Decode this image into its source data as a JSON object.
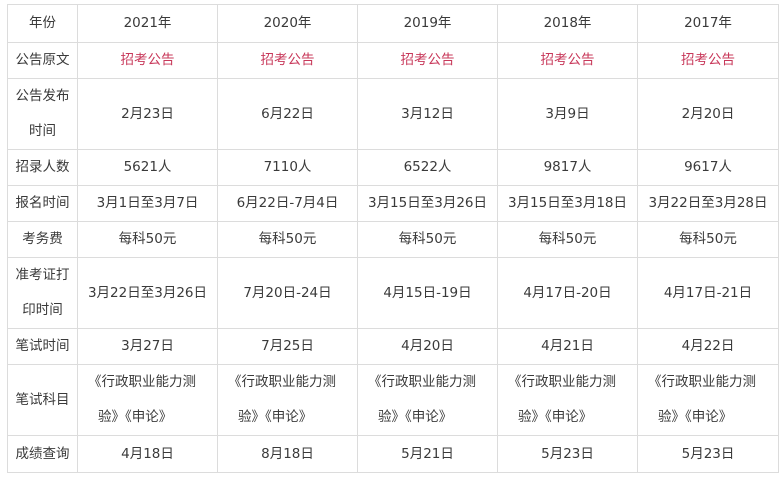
{
  "colors": {
    "link": "#c8385a",
    "text": "#3a3a3a",
    "border": "#dcdcdc"
  },
  "rows": [
    {
      "label": "年份",
      "cells": [
        "2021年",
        "2020年",
        "2019年",
        "2018年",
        "2017年"
      ]
    },
    {
      "label": "公告原文",
      "cells": [
        "招考公告",
        "招考公告",
        "招考公告",
        "招考公告",
        "招考公告"
      ],
      "link": true
    },
    {
      "label_lines": [
        "公告发布",
        "时间"
      ],
      "cells": [
        "2月23日",
        "6月22日",
        "3月12日",
        "3月9日",
        "2月20日"
      ]
    },
    {
      "label": "招录人数",
      "cells": [
        "5621人",
        "7110人",
        "6522人",
        "9817人",
        "9617人"
      ]
    },
    {
      "label": "报名时间",
      "cells": [
        "3月1日至3月7日",
        "6月22日-7月4日",
        "3月15日至3月26日",
        "3月15日至3月18日",
        "3月22日至3月28日"
      ]
    },
    {
      "label": "考务费",
      "cells": [
        "每科50元",
        "每科50元",
        "每科50元",
        "每科50元",
        "每科50元"
      ]
    },
    {
      "label_lines": [
        "准考证打",
        "印时间"
      ],
      "cells": [
        "3月22日至3月26日",
        "7月20日-24日",
        "4月15日-19日",
        "4月17日-20日",
        "4月17日-21日"
      ]
    },
    {
      "label": "笔试时间",
      "cells": [
        "3月27日",
        "7月25日",
        "4月20日",
        "4月21日",
        "4月22日"
      ]
    },
    {
      "label": "笔试科目",
      "cells_lines": [
        [
          "《行政职业能力测",
          "验》《申论》"
        ],
        [
          "《行政职业能力测",
          "验》《申论》"
        ],
        [
          "《行政职业能力测",
          "验》《申论》"
        ],
        [
          "《行政职业能力测",
          "验》《申论》"
        ],
        [
          "《行政职业能力测",
          "验》《申论》"
        ]
      ]
    },
    {
      "label": "成绩查询",
      "cells": [
        "4月18日",
        "8月18日",
        "5月21日",
        "5月23日",
        "5月23日"
      ]
    }
  ]
}
